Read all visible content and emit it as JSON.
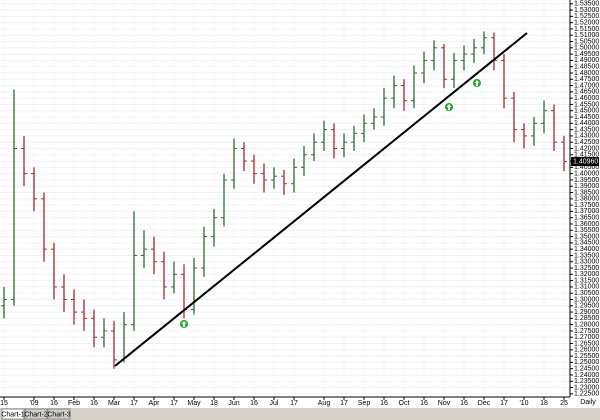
{
  "chart_data": {
    "type": "ohlc",
    "categories": [
      "15",
      null,
      null,
      "'09",
      null,
      "16",
      null,
      "Feb",
      null,
      "16",
      null,
      "Mar",
      null,
      "17",
      null,
      "Apr",
      null,
      "17",
      null,
      "May",
      null,
      "18",
      null,
      "Jun",
      null,
      "16",
      null,
      "Jul",
      null,
      "17",
      null,
      null,
      "Aug",
      null,
      "17",
      null,
      "Sep",
      null,
      "16",
      null,
      "Oct",
      null,
      "16",
      null,
      "Nov",
      null,
      "16",
      null,
      "Dec",
      null,
      "17",
      null,
      "'10",
      null,
      "18",
      null,
      "25"
    ],
    "open": [
      1.295,
      1.3,
      1.42,
      1.4,
      1.38,
      1.34,
      1.31,
      1.3,
      1.29,
      1.285,
      1.27,
      1.275,
      1.252,
      1.28,
      1.335,
      1.34,
      1.33,
      1.31,
      1.32,
      1.292,
      1.325,
      1.35,
      1.365,
      1.395,
      1.42,
      1.41,
      1.4,
      1.395,
      1.398,
      1.392,
      1.405,
      1.415,
      1.425,
      1.435,
      1.42,
      1.425,
      1.432,
      1.44,
      1.445,
      1.46,
      1.47,
      1.458,
      1.48,
      1.49,
      1.5,
      1.475,
      1.49,
      1.495,
      1.5,
      1.508,
      1.49,
      1.46,
      1.435,
      1.43,
      1.44,
      1.45,
      1.425
    ],
    "high": [
      1.31,
      1.467,
      1.43,
      1.405,
      1.385,
      1.345,
      1.32,
      1.308,
      1.3,
      1.292,
      1.285,
      1.283,
      1.29,
      1.37,
      1.355,
      1.35,
      1.338,
      1.33,
      1.328,
      1.333,
      1.358,
      1.372,
      1.4,
      1.428,
      1.425,
      1.415,
      1.408,
      1.405,
      1.403,
      1.412,
      1.422,
      1.432,
      1.442,
      1.44,
      1.432,
      1.438,
      1.447,
      1.452,
      1.468,
      1.478,
      1.475,
      1.486,
      1.497,
      1.506,
      1.503,
      1.496,
      1.502,
      1.507,
      1.513,
      1.512,
      1.495,
      1.465,
      1.44,
      1.445,
      1.458,
      1.455,
      1.43
    ],
    "low": [
      1.285,
      1.295,
      1.39,
      1.37,
      1.33,
      1.3,
      1.29,
      1.28,
      1.275,
      1.262,
      1.262,
      1.245,
      1.25,
      1.275,
      1.325,
      1.32,
      1.3,
      1.305,
      1.285,
      1.288,
      1.318,
      1.342,
      1.358,
      1.388,
      1.402,
      1.392,
      1.385,
      1.388,
      1.383,
      1.385,
      1.398,
      1.41,
      1.418,
      1.412,
      1.413,
      1.418,
      1.425,
      1.435,
      1.438,
      1.452,
      1.45,
      1.452,
      1.472,
      1.482,
      1.468,
      1.468,
      1.482,
      1.488,
      1.495,
      1.482,
      1.452,
      1.425,
      1.42,
      1.422,
      1.432,
      1.418,
      1.402
    ],
    "close": [
      1.3,
      1.42,
      1.4,
      1.38,
      1.34,
      1.31,
      1.3,
      1.29,
      1.285,
      1.27,
      1.275,
      1.252,
      1.28,
      1.335,
      1.34,
      1.33,
      1.31,
      1.32,
      1.292,
      1.325,
      1.35,
      1.365,
      1.395,
      1.42,
      1.41,
      1.4,
      1.395,
      1.398,
      1.392,
      1.405,
      1.415,
      1.425,
      1.435,
      1.42,
      1.425,
      1.432,
      1.44,
      1.445,
      1.46,
      1.47,
      1.458,
      1.48,
      1.49,
      1.5,
      1.475,
      1.49,
      1.495,
      1.5,
      1.508,
      1.49,
      1.46,
      1.435,
      1.43,
      1.44,
      1.45,
      1.425,
      1.4096
    ],
    "up_color": "#2e6b2e",
    "down_color": "#a52a2a",
    "ylim": [
      1.2225,
      1.538
    ],
    "yticks": [
      {
        "value": 1.535,
        "label": "1.53500"
      },
      {
        "value": 1.53,
        "label": "1.53000"
      },
      {
        "value": 1.525,
        "label": "1.52500"
      },
      {
        "value": 1.52,
        "label": "1.52000"
      },
      {
        "value": 1.515,
        "label": "1.51500"
      },
      {
        "value": 1.51,
        "label": "1.51000"
      },
      {
        "value": 1.505,
        "label": "1.50500"
      },
      {
        "value": 1.5,
        "label": "1.50000"
      },
      {
        "value": 1.495,
        "label": "1.49500"
      },
      {
        "value": 1.49,
        "label": "1.49000"
      },
      {
        "value": 1.485,
        "label": "1.48500"
      },
      {
        "value": 1.48,
        "label": "1.48000"
      },
      {
        "value": 1.475,
        "label": "1.47500"
      },
      {
        "value": 1.47,
        "label": "1.47000"
      },
      {
        "value": 1.465,
        "label": "1.46500"
      },
      {
        "value": 1.46,
        "label": "1.46000"
      },
      {
        "value": 1.455,
        "label": "1.45500"
      },
      {
        "value": 1.45,
        "label": "1.45000"
      },
      {
        "value": 1.445,
        "label": "1.44500"
      },
      {
        "value": 1.44,
        "label": "1.44000"
      },
      {
        "value": 1.435,
        "label": "1.43500"
      },
      {
        "value": 1.43,
        "label": "1.43000"
      },
      {
        "value": 1.425,
        "label": "1.42500"
      },
      {
        "value": 1.42,
        "label": "1.42000"
      },
      {
        "value": 1.415,
        "label": "1.41500"
      },
      {
        "value": 1.41,
        "label": "1.41000"
      },
      {
        "value": 1.405,
        "label": "1.40500"
      },
      {
        "value": 1.4,
        "label": "1.40000"
      },
      {
        "value": 1.395,
        "label": "1.39500"
      },
      {
        "value": 1.39,
        "label": "1.39000"
      },
      {
        "value": 1.385,
        "label": "1.38500"
      },
      {
        "value": 1.38,
        "label": "1.38000"
      },
      {
        "value": 1.375,
        "label": "1.37500"
      },
      {
        "value": 1.37,
        "label": "1.37000"
      },
      {
        "value": 1.365,
        "label": "1.36500"
      },
      {
        "value": 1.36,
        "label": "1.36000"
      },
      {
        "value": 1.355,
        "label": "1.35500"
      },
      {
        "value": 1.35,
        "label": "1.35000"
      },
      {
        "value": 1.345,
        "label": "1.34500"
      },
      {
        "value": 1.34,
        "label": "1.34000"
      },
      {
        "value": 1.335,
        "label": "1.33500"
      },
      {
        "value": 1.33,
        "label": "1.33000"
      },
      {
        "value": 1.325,
        "label": "1.32500"
      },
      {
        "value": 1.32,
        "label": "1.32000"
      },
      {
        "value": 1.315,
        "label": "1.31500"
      },
      {
        "value": 1.31,
        "label": "1.31000"
      },
      {
        "value": 1.305,
        "label": "1.30500"
      },
      {
        "value": 1.3,
        "label": "1.30000"
      },
      {
        "value": 1.295,
        "label": "1.29500"
      },
      {
        "value": 1.29,
        "label": "1.29000"
      },
      {
        "value": 1.285,
        "label": "1.28500"
      },
      {
        "value": 1.28,
        "label": "1.28000"
      },
      {
        "value": 1.275,
        "label": "1.27500"
      },
      {
        "value": 1.27,
        "label": "1.27000"
      },
      {
        "value": 1.265,
        "label": "1.26500"
      },
      {
        "value": 1.26,
        "label": "1.26000"
      },
      {
        "value": 1.255,
        "label": "1.25500"
      },
      {
        "value": 1.25,
        "label": "1.25000"
      },
      {
        "value": 1.245,
        "label": "1.24500"
      },
      {
        "value": 1.24,
        "label": "1.24000"
      },
      {
        "value": 1.235,
        "label": "1.23500"
      },
      {
        "value": 1.23,
        "label": "1.23000"
      },
      {
        "value": 1.225,
        "label": "1.22500"
      }
    ],
    "grid": true,
    "last_price": {
      "value": 1.4096,
      "label": "1.40960"
    },
    "timeframe": "Daily"
  },
  "tabs": [
    "Chart-1",
    "Chart-2",
    "Chart-3"
  ]
}
